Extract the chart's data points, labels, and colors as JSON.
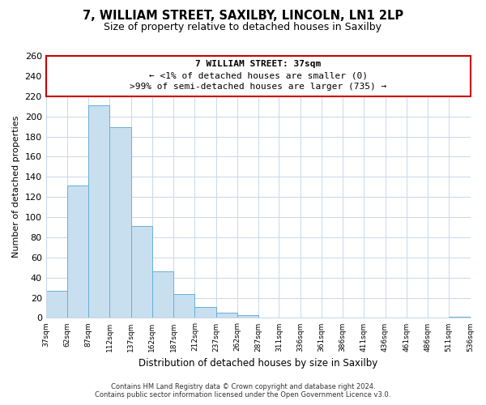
{
  "title": "7, WILLIAM STREET, SAXILBY, LINCOLN, LN1 2LP",
  "subtitle": "Size of property relative to detached houses in Saxilby",
  "xlabel": "Distribution of detached houses by size in Saxilby",
  "ylabel": "Number of detached properties",
  "bar_color": "#c8dff0",
  "bar_edge_color": "#6aaed6",
  "background_color": "#ffffff",
  "grid_color": "#c8d8e8",
  "annotation_box_color": "#cc0000",
  "annotation_title": "7 WILLIAM STREET: 37sqm",
  "annotation_line1": "← <1% of detached houses are smaller (0)",
  "annotation_line2": ">99% of semi-detached houses are larger (735) →",
  "bins": [
    37,
    62,
    87,
    112,
    137,
    162,
    187,
    212,
    237,
    262,
    287,
    311,
    336,
    361,
    386,
    411,
    436,
    461,
    486,
    511,
    536
  ],
  "counts": [
    27,
    131,
    211,
    189,
    91,
    46,
    24,
    11,
    5,
    3,
    0,
    0,
    0,
    0,
    0,
    0,
    0,
    0,
    0,
    1
  ],
  "ylim": [
    0,
    260
  ],
  "yticks": [
    0,
    20,
    40,
    60,
    80,
    100,
    120,
    140,
    160,
    180,
    200,
    220,
    240,
    260
  ],
  "footer_line1": "Contains HM Land Registry data © Crown copyright and database right 2024.",
  "footer_line2": "Contains public sector information licensed under the Open Government Licence v3.0."
}
